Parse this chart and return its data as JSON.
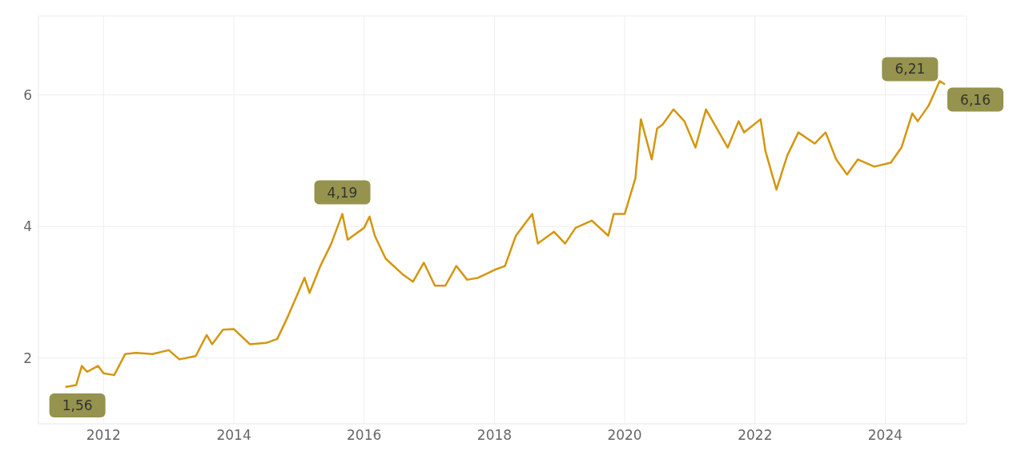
{
  "chart_data": {
    "type": "line",
    "x": [
      "2011-06",
      "2011-08",
      "2011-09",
      "2011-10",
      "2011-12",
      "2012-01",
      "2012-03",
      "2012-05",
      "2012-07",
      "2012-10",
      "2013-01",
      "2013-03",
      "2013-06",
      "2013-08",
      "2013-09",
      "2013-11",
      "2014-01",
      "2014-04",
      "2014-07",
      "2014-09",
      "2014-11",
      "2015-02",
      "2015-03",
      "2015-05",
      "2015-07",
      "2015-09",
      "2015-10",
      "2016-01",
      "2016-02",
      "2016-03",
      "2016-05",
      "2016-08",
      "2016-10",
      "2016-12",
      "2017-02",
      "2017-04",
      "2017-06",
      "2017-08",
      "2017-10",
      "2018-01",
      "2018-03",
      "2018-05",
      "2018-08",
      "2018-09",
      "2018-12",
      "2019-02",
      "2019-04",
      "2019-07",
      "2019-10",
      "2019-11",
      "2020-01",
      "2020-03",
      "2020-04",
      "2020-06",
      "2020-07",
      "2020-08",
      "2020-10",
      "2020-12",
      "2021-02",
      "2021-04",
      "2021-06",
      "2021-08",
      "2021-10",
      "2021-11",
      "2022-02",
      "2022-03",
      "2022-05",
      "2022-07",
      "2022-09",
      "2022-12",
      "2023-02",
      "2023-04",
      "2023-06",
      "2023-08",
      "2023-11",
      "2024-02",
      "2024-04",
      "2024-06",
      "2024-07",
      "2024-09",
      "2024-11",
      "2024-12"
    ],
    "series": [
      {
        "color": "#d4960f",
        "values": [
          1.56,
          1.59,
          1.88,
          1.79,
          1.88,
          1.77,
          1.74,
          2.06,
          2.08,
          2.06,
          2.12,
          1.98,
          2.03,
          2.35,
          2.21,
          2.43,
          2.44,
          2.21,
          2.23,
          2.29,
          2.64,
          3.22,
          2.99,
          3.4,
          3.74,
          4.19,
          3.8,
          3.98,
          4.15,
          3.86,
          3.51,
          3.28,
          3.16,
          3.45,
          3.1,
          3.1,
          3.4,
          3.19,
          3.22,
          3.34,
          3.4,
          3.86,
          4.19,
          3.74,
          3.92,
          3.74,
          3.98,
          4.09,
          3.86,
          4.19,
          4.19,
          4.73,
          5.63,
          5.02,
          5.49,
          5.55,
          5.78,
          5.6,
          5.2,
          5.78,
          5.49,
          5.2,
          5.6,
          5.43,
          5.63,
          5.14,
          4.56,
          5.08,
          5.43,
          5.26,
          5.43,
          5.02,
          4.79,
          5.02,
          4.91,
          4.97,
          5.2,
          5.72,
          5.6,
          5.84,
          6.21,
          6.16
        ]
      }
    ],
    "annotations": [
      {
        "text": "1,56",
        "x": "2011-06",
        "y": 1.56
      },
      {
        "text": "4,19",
        "x": "2015-09",
        "y": 4.19
      },
      {
        "text": "6,21",
        "x": "2024-11",
        "y": 6.21
      },
      {
        "text": "6,16",
        "x": "2024-12",
        "y": 6.16
      }
    ],
    "xlim": [
      "2011-01",
      "2025-04"
    ],
    "xticks": [
      "2012",
      "2014",
      "2016",
      "2018",
      "2020",
      "2022",
      "2024"
    ],
    "ylim": [
      1,
      7.2
    ],
    "yticks": [
      2,
      4,
      6
    ],
    "grid": true,
    "legend": false,
    "marker": "none",
    "line_style": "solid"
  }
}
